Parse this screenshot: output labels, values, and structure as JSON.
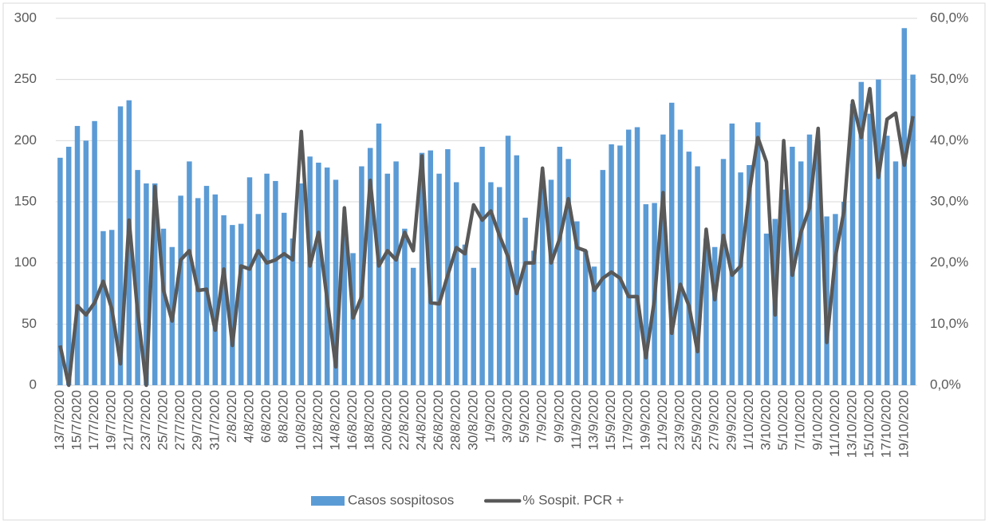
{
  "chart_data": {
    "type": "bar-line",
    "categories": [
      "13/7/2020",
      null,
      "15/7/2020",
      null,
      "17/7/2020",
      null,
      "19/7/2020",
      null,
      "21/7/2020",
      null,
      "23/7/2020",
      null,
      "25/7/2020",
      null,
      "27/7/2020",
      null,
      "29/7/2020",
      null,
      "31/7/2020",
      null,
      "2/8/2020",
      null,
      "4/8/2020",
      null,
      "6/8/2020",
      null,
      "8/8/2020",
      null,
      "10/8/2020",
      null,
      "12/8/2020",
      null,
      "14/8/2020",
      null,
      "16/8/2020",
      null,
      "18/8/2020",
      null,
      "20/8/2020",
      null,
      "22/8/2020",
      null,
      "24/8/2020",
      null,
      "26/8/2020",
      null,
      "28/8/2020",
      null,
      "30/8/2020",
      null,
      "1/9/2020",
      null,
      "3/9/2020",
      null,
      "5/9/2020",
      null,
      "7/9/2020",
      null,
      "9/9/2020",
      null,
      "11/9/2020",
      null,
      "13/9/2020",
      null,
      "15/9/2020",
      null,
      "17/9/2020",
      null,
      "19/9/2020",
      null,
      "21/9/2020",
      null,
      "23/9/2020",
      null,
      "25/9/2020",
      null,
      "27/9/2020",
      null,
      "29/9/2020",
      null,
      "1/10/2020",
      null,
      "3/10/2020",
      null,
      "5/10/2020",
      null,
      "7/10/2020",
      null,
      "9/10/2020",
      null,
      "11/10/2020",
      null,
      "13/10/2020",
      null,
      "15/10/2020",
      null,
      "17/10/2020",
      null,
      "19/10/2020",
      null
    ],
    "series": [
      {
        "name": "Casos sospitosos",
        "type": "bar",
        "color": "#5b9bd5",
        "values": [
          186,
          195,
          212,
          200,
          216,
          126,
          127,
          228,
          233,
          176,
          165,
          165,
          128,
          113,
          155,
          183,
          153,
          163,
          156,
          139,
          131,
          132,
          170,
          140,
          173,
          167,
          141,
          120,
          165,
          187,
          182,
          178,
          168,
          130,
          108,
          179,
          194,
          214,
          173,
          183,
          128,
          96,
          190,
          192,
          173,
          193,
          166,
          115,
          96,
          195,
          166,
          162,
          204,
          188,
          137,
          110,
          170,
          168,
          195,
          185,
          134,
          110,
          97,
          176,
          197,
          196,
          209,
          211,
          148,
          149,
          205,
          231,
          209,
          191,
          179,
          120,
          113,
          185,
          214,
          174,
          180,
          215,
          124,
          136,
          160,
          195,
          183,
          205,
          200,
          138,
          140,
          150,
          230,
          248,
          222,
          250,
          204,
          183,
          292,
          254
        ]
      },
      {
        "name": "% Sospit. PCR +",
        "type": "line",
        "axis": "y2",
        "color": "#595959",
        "values": [
          6.5,
          0,
          13,
          11.5,
          13.5,
          17,
          12.5,
          3.5,
          27,
          12,
          0,
          32.5,
          15.5,
          10.5,
          20.5,
          22,
          15.5,
          15.7,
          9,
          19,
          6.5,
          19.5,
          19,
          22,
          20,
          20.5,
          21.5,
          20.5,
          41.5,
          19.5,
          25,
          14,
          3,
          29,
          11,
          14.5,
          33.5,
          19.5,
          22,
          20.5,
          25,
          22,
          37.5,
          13.5,
          13.3,
          18,
          22.5,
          21.5,
          29.5,
          27,
          28.5,
          24.5,
          21,
          15,
          20,
          20,
          35.5,
          20,
          24,
          30.5,
          22.5,
          22,
          15.5,
          17.5,
          18.5,
          17.5,
          14.5,
          14.5,
          4.5,
          14,
          31.5,
          8.5,
          16.5,
          13,
          5.5,
          25.5,
          14,
          24.5,
          18,
          19.5,
          31.5,
          40.5,
          36.5,
          11.5,
          40,
          18,
          25,
          29,
          42,
          7,
          21,
          28.5,
          46.5,
          40.5,
          48.5,
          34,
          43.5,
          44.5,
          36,
          44
        ]
      }
    ],
    "ylim": [
      0,
      300
    ],
    "yticks": [
      0,
      50,
      100,
      150,
      200,
      250,
      300
    ],
    "y2lim": [
      0,
      60
    ],
    "y2ticks": [
      {
        "value": 0,
        "label": "0,0%"
      },
      {
        "value": 10,
        "label": "10,0%"
      },
      {
        "value": 20,
        "label": "20,0%"
      },
      {
        "value": 30,
        "label": "30,0%"
      },
      {
        "value": 40,
        "label": "40,0%"
      },
      {
        "value": 50,
        "label": "50,0%"
      },
      {
        "value": 60,
        "label": "60,0%"
      }
    ],
    "grid": true,
    "legend": "bottom"
  }
}
